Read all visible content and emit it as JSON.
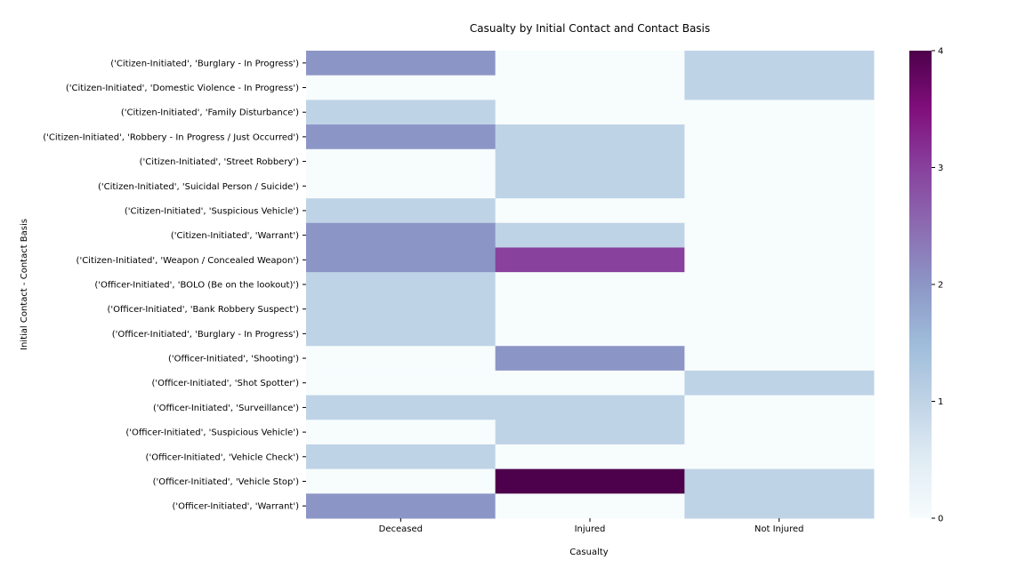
{
  "chart_data": {
    "type": "heatmap",
    "title": "Casualty by Initial Contact and Contact Basis",
    "xlabel": "Casualty",
    "ylabel": "Initial Contact - Contact Basis",
    "x_categories": [
      "Deceased",
      "Injured",
      "Not Injured"
    ],
    "y_categories": [
      "('Citizen-Initiated', 'Burglary - In Progress')",
      "('Citizen-Initiated', 'Domestic Violence - In Progress')",
      "('Citizen-Initiated', 'Family Disturbance')",
      "('Citizen-Initiated', 'Robbery - In Progress / Just Occurred')",
      "('Citizen-Initiated', 'Street Robbery')",
      "('Citizen-Initiated', 'Suicidal Person / Suicide')",
      "('Citizen-Initiated', 'Suspicious Vehicle')",
      "('Citizen-Initiated', 'Warrant')",
      "('Citizen-Initiated', 'Weapon / Concealed Weapon')",
      "('Officer-Initiated', 'BOLO (Be on the lookout)')",
      "('Officer-Initiated', 'Bank Robbery Suspect')",
      "('Officer-Initiated', 'Burglary - In Progress')",
      "('Officer-Initiated', 'Shooting')",
      "('Officer-Initiated', 'Shot Spotter')",
      "('Officer-Initiated', 'Surveillance')",
      "('Officer-Initiated', 'Suspicious Vehicle')",
      "('Officer-Initiated', 'Vehicle Check')",
      "('Officer-Initiated', 'Vehicle Stop')",
      "('Officer-Initiated', 'Warrant')"
    ],
    "values": [
      [
        2,
        0,
        1
      ],
      [
        0,
        0,
        1
      ],
      [
        1,
        0,
        0
      ],
      [
        2,
        1,
        0
      ],
      [
        0,
        1,
        0
      ],
      [
        0,
        1,
        0
      ],
      [
        1,
        0,
        0
      ],
      [
        2,
        1,
        0
      ],
      [
        2,
        3,
        0
      ],
      [
        1,
        0,
        0
      ],
      [
        1,
        0,
        0
      ],
      [
        1,
        0,
        0
      ],
      [
        0,
        2,
        0
      ],
      [
        0,
        0,
        1
      ],
      [
        1,
        1,
        0
      ],
      [
        0,
        1,
        0
      ],
      [
        1,
        0,
        0
      ],
      [
        0,
        4,
        1
      ],
      [
        2,
        0,
        1
      ]
    ],
    "colorbar": {
      "min": 0,
      "max": 4,
      "ticks": [
        "0",
        "1",
        "2",
        "3",
        "4"
      ],
      "colormap": "BuPu"
    },
    "colors": {
      "0": "#f7fcfd",
      "1": "#bfd3e6",
      "2": "#8c96c6",
      "3": "#88419d",
      "4": "#4d004b"
    },
    "grid": false
  }
}
